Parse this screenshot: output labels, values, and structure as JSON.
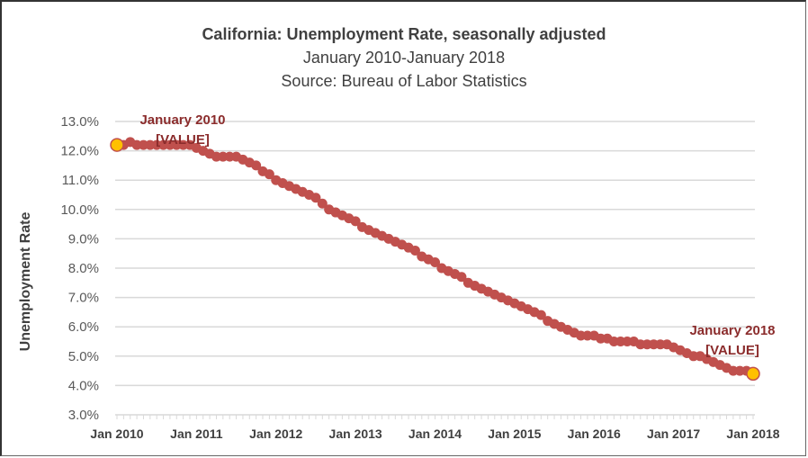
{
  "chart_data": {
    "type": "line",
    "title": "California: Unemployment Rate, seasonally adjusted",
    "subtitle": "January 2010-January 2018",
    "source": "Source: Bureau of Labor Statistics",
    "xlabel": "",
    "ylabel": "Unemployment Rate",
    "ylim": [
      3.0,
      13.0
    ],
    "y_ticks": [
      "3.0%",
      "4.0%",
      "5.0%",
      "6.0%",
      "7.0%",
      "8.0%",
      "9.0%",
      "10.0%",
      "11.0%",
      "12.0%",
      "13.0%"
    ],
    "y_tick_values": [
      3,
      4,
      5,
      6,
      7,
      8,
      9,
      10,
      11,
      12,
      13
    ],
    "x_ticks": [
      "Jan 2010",
      "Jan 2011",
      "Jan 2012",
      "Jan 2013",
      "Jan 2014",
      "Jan 2015",
      "Jan 2016",
      "Jan 2017",
      "Jan 2018"
    ],
    "x_tick_months": [
      0,
      12,
      24,
      36,
      48,
      60,
      72,
      84,
      96
    ],
    "grid": true,
    "legend": "none",
    "series": [
      {
        "name": "Unemployment Rate",
        "color": "#C0504D",
        "x_start": "Jan 2010",
        "frequency": "monthly",
        "values": [
          12.2,
          12.2,
          12.3,
          12.2,
          12.2,
          12.2,
          12.2,
          12.2,
          12.2,
          12.2,
          12.2,
          12.2,
          12.1,
          12.0,
          11.9,
          11.8,
          11.8,
          11.8,
          11.8,
          11.7,
          11.6,
          11.5,
          11.3,
          11.2,
          11.0,
          10.9,
          10.8,
          10.7,
          10.6,
          10.5,
          10.4,
          10.2,
          10.0,
          9.9,
          9.8,
          9.7,
          9.6,
          9.4,
          9.3,
          9.2,
          9.1,
          9.0,
          8.9,
          8.8,
          8.7,
          8.6,
          8.4,
          8.3,
          8.2,
          8.0,
          7.9,
          7.8,
          7.7,
          7.5,
          7.4,
          7.3,
          7.2,
          7.1,
          7.0,
          6.9,
          6.8,
          6.7,
          6.6,
          6.5,
          6.4,
          6.2,
          6.1,
          6.0,
          5.9,
          5.8,
          5.7,
          5.7,
          5.7,
          5.6,
          5.6,
          5.5,
          5.5,
          5.5,
          5.5,
          5.4,
          5.4,
          5.4,
          5.4,
          5.4,
          5.3,
          5.2,
          5.1,
          5.0,
          5.0,
          4.9,
          4.8,
          4.7,
          4.6,
          4.5,
          4.5,
          4.5,
          4.4
        ]
      }
    ],
    "highlight_color": "#FFC000",
    "annotations": [
      {
        "point_index": 0,
        "line1": "January 2010",
        "line2": "[VALUE]"
      },
      {
        "point_index": 96,
        "line1": "January 2018",
        "line2": "[VALUE]"
      }
    ]
  }
}
